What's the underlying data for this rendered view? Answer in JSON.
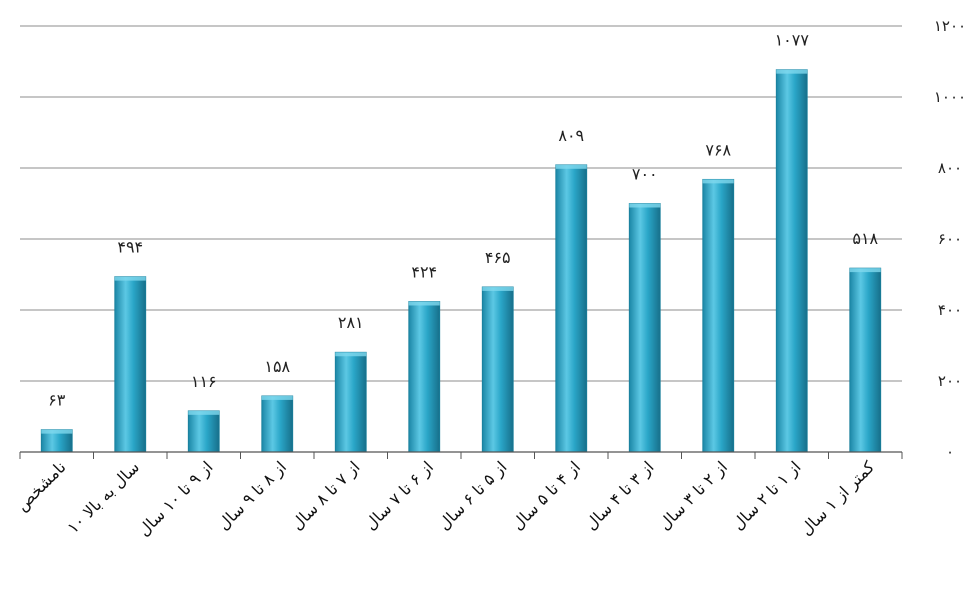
{
  "chart_data": {
    "type": "bar",
    "categories": [
      "نامشخص",
      "۱۰ سال به بالا",
      "از ۹ تا ۱۰ سال",
      "از ۸ تا ۹ سال",
      "از ۷ تا ۸ سال",
      "از ۶ تا ۷ سال",
      "از ۵ تا ۶ سال",
      "از ۴ تا ۵ سال",
      "از ۳ تا ۴ سال",
      "از ۲ تا ۳ سال",
      "از ۱ تا ۲ سال",
      "کمتر از ۱ سال"
    ],
    "values": [
      63,
      494,
      116,
      158,
      281,
      424,
      465,
      809,
      700,
      768,
      1077,
      518
    ],
    "data_labels": [
      "۶۳",
      "۴۹۴",
      "۱۱۶",
      "۱۵۸",
      "۲۸۱",
      "۴۲۴",
      "۴۶۵",
      "۸۰۹",
      "۷۰۰",
      "۷۶۸",
      "۱۰۷۷",
      "۵۱۸"
    ],
    "ylim": [
      0,
      1200
    ],
    "yticks": [
      0,
      200,
      400,
      600,
      800,
      1000,
      1200
    ],
    "ytick_labels": [
      "۰",
      "۲۰۰",
      "۴۰۰",
      "۶۰۰",
      "۸۰۰",
      "۱۰۰۰",
      "۱۲۰۰"
    ],
    "y_axis_side": "right",
    "grid": true,
    "bar_color": "#2aa6c8",
    "bar_edge_color": "#1a7f9c",
    "grid_color": "#8c8c8c"
  }
}
